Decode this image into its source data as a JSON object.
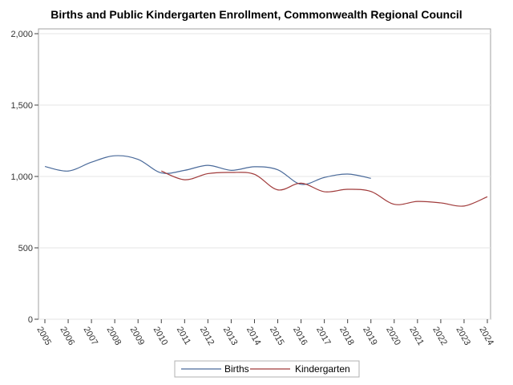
{
  "chart_data": {
    "type": "line",
    "title": "Births and Public Kindergarten Enrollment, Commonwealth Regional Council",
    "xlabel": "",
    "ylabel": "",
    "x": [
      "2005",
      "2006",
      "2007",
      "2008",
      "2009",
      "2010",
      "2011",
      "2012",
      "2013",
      "2014",
      "2015",
      "2016",
      "2017",
      "2018",
      "2019",
      "2020",
      "2021",
      "2022",
      "2023",
      "2024"
    ],
    "ylim": [
      0,
      2000
    ],
    "yticks": [
      0,
      500,
      1000,
      1500,
      2000
    ],
    "ytick_labels": [
      "0",
      "500",
      "1,000",
      "1,500",
      "2,000"
    ],
    "grid": true,
    "legend_position": "bottom",
    "series": [
      {
        "name": "Births",
        "color": "#4a6a9a",
        "values": [
          1070,
          1038,
          1100,
          1145,
          1120,
          1025,
          1043,
          1078,
          1043,
          1068,
          1047,
          945,
          993,
          1017,
          987,
          null,
          null,
          null,
          null,
          null
        ]
      },
      {
        "name": "Kindergarten",
        "color": "#a03a3a",
        "values": [
          null,
          null,
          null,
          null,
          null,
          1038,
          977,
          1020,
          1028,
          1015,
          906,
          953,
          893,
          910,
          895,
          805,
          825,
          815,
          793,
          858
        ]
      }
    ]
  }
}
